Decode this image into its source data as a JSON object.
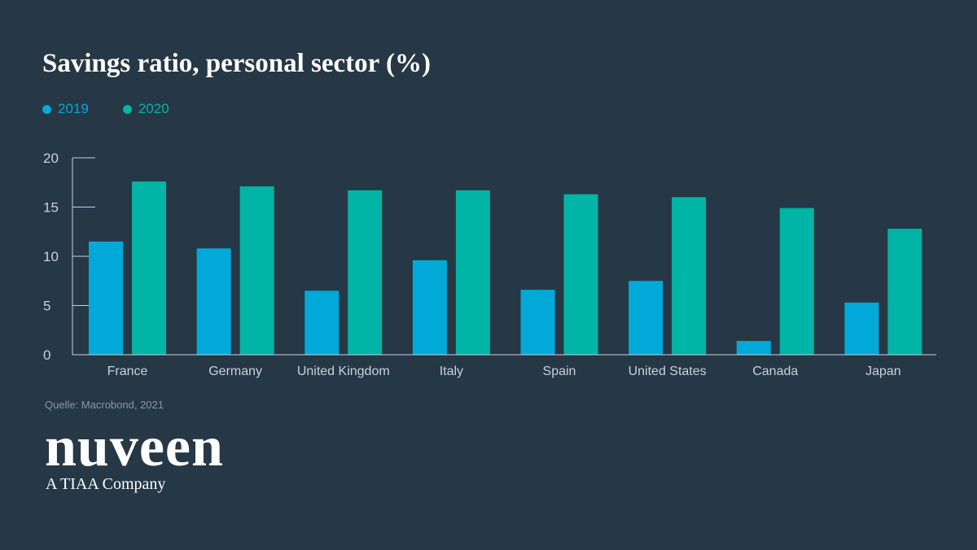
{
  "colors": {
    "background": "#263746",
    "series_2019": "#00a9d8",
    "series_2020": "#00b5a5",
    "axis": "#c9d2da",
    "tick_text": "#c9d2da"
  },
  "source": "Quelle: Macrobond, 2021",
  "brand": {
    "logo_text": "nuveen",
    "tagline": "A TIAA Company"
  },
  "chart_data": {
    "type": "bar",
    "title": "Savings ratio, personal sector (%)",
    "xlabel": "",
    "ylabel": "",
    "categories": [
      "France",
      "Germany",
      "United Kingdom",
      "Italy",
      "Spain",
      "United States",
      "Canada",
      "Japan"
    ],
    "series": [
      {
        "name": "2019",
        "values": [
          11.5,
          10.8,
          6.5,
          9.6,
          6.6,
          7.5,
          1.4,
          5.3
        ]
      },
      {
        "name": "2020",
        "values": [
          17.6,
          17.1,
          16.7,
          16.7,
          16.3,
          16.0,
          14.9,
          12.8
        ]
      }
    ],
    "ylim": [
      0,
      20
    ],
    "yticks": [
      0,
      5,
      10,
      15,
      20
    ],
    "grid": false,
    "legend": "top-left"
  }
}
